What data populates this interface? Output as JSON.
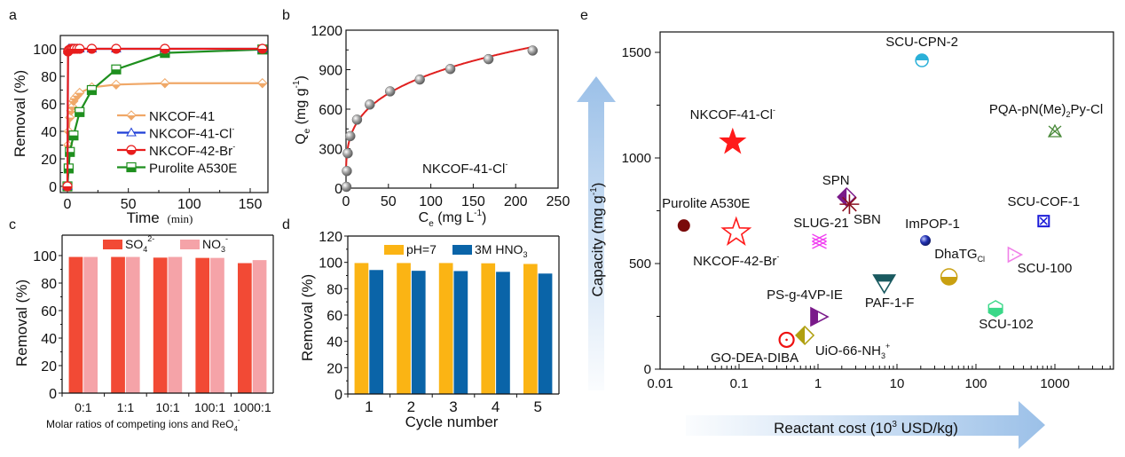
{
  "chart_data": [
    {
      "panel": "a",
      "type": "line",
      "title": "",
      "xlabel": "Time (min)",
      "ylabel": "Removal (%)",
      "xlim": [
        -5,
        165
      ],
      "ylim": [
        -3,
        108
      ],
      "xticks": [
        0,
        50,
        100,
        150
      ],
      "yticks": [
        0,
        20,
        40,
        60,
        80,
        100
      ],
      "legend_position": "bottom-right",
      "series": [
        {
          "name": "NKCOF-41",
          "color": "#f0a868",
          "marker": "diamond",
          "x": [
            0,
            0.5,
            1,
            2,
            3,
            4,
            5,
            6,
            8,
            10,
            20,
            40,
            80,
            160
          ],
          "y": [
            0,
            30,
            40,
            50,
            55,
            58,
            62,
            64,
            66,
            68,
            72,
            74,
            75,
            75
          ]
        },
        {
          "name": "NKCOF-41-Cl⁻",
          "color": "#1f3fd6",
          "marker": "triangle",
          "x": [
            0,
            0.5,
            1,
            2,
            3,
            4,
            5,
            6,
            8,
            10,
            20,
            40,
            80,
            160
          ],
          "y": [
            0,
            99,
            100,
            100,
            100,
            100,
            100,
            100,
            100,
            100,
            100,
            100,
            100,
            100
          ]
        },
        {
          "name": "NKCOF-42-Br⁻",
          "color": "#e81d1d",
          "marker": "circle",
          "x": [
            0,
            0.5,
            1,
            2,
            3,
            4,
            5,
            6,
            8,
            10,
            20,
            40,
            80,
            160
          ],
          "y": [
            0,
            98,
            99,
            99.5,
            100,
            100,
            100,
            100,
            100,
            100,
            100,
            100,
            100,
            100
          ]
        },
        {
          "name": "Purolite A530E",
          "color": "#1e8f1e",
          "marker": "square",
          "x": [
            0,
            1,
            2,
            5,
            10,
            20,
            40,
            80,
            160
          ],
          "y": [
            0,
            13,
            25,
            37,
            54,
            70,
            85,
            97,
            99.5
          ]
        }
      ]
    },
    {
      "panel": "b",
      "type": "scatter",
      "title": "",
      "annotation": "NKCOF-41-Cl⁻",
      "xlabel": "Ce (mg L⁻¹)",
      "ylabel": "Qe (mg g⁻¹)",
      "xlim": [
        0,
        250
      ],
      "ylim": [
        0,
        1200
      ],
      "xticks": [
        0,
        50,
        100,
        150,
        200,
        250
      ],
      "yticks": [
        0,
        300,
        600,
        900,
        1200
      ],
      "points": {
        "x": [
          0.5,
          1,
          2,
          5,
          13,
          28,
          52,
          87,
          123,
          168,
          220
        ],
        "y": [
          10,
          130,
          265,
          395,
          520,
          635,
          735,
          825,
          905,
          980,
          1045
        ]
      },
      "fit": {
        "type": "freundlich",
        "K": 250,
        "n_inv": 0.27,
        "color": "#e0201f"
      }
    },
    {
      "panel": "c",
      "type": "bar",
      "title": "",
      "xlabel": "Molar ratios of competing ions and ReO₄⁻",
      "ylabel": "Removal (%)",
      "ylim": [
        0,
        112
      ],
      "yticks": [
        0,
        20,
        40,
        60,
        80,
        100
      ],
      "categories": [
        "0:1",
        "1:1",
        "10:1",
        "100:1",
        "1000:1"
      ],
      "legend_position": "top",
      "series": [
        {
          "name": "SO₄²⁻",
          "color": "#f24a35",
          "values": [
            99,
            99,
            98.5,
            98.3,
            94.5
          ]
        },
        {
          "name": "NO₃⁻",
          "color": "#f5a3a8",
          "values": [
            99,
            99,
            99,
            98.3,
            96.7
          ]
        }
      ]
    },
    {
      "panel": "d",
      "type": "bar",
      "title": "",
      "xlabel": "Cycle number",
      "ylabel": "Removal (%)",
      "ylim": [
        0,
        120
      ],
      "yticks": [
        0,
        20,
        40,
        60,
        80,
        100,
        120
      ],
      "categories": [
        "1",
        "2",
        "3",
        "4",
        "5"
      ],
      "legend_position": "top",
      "series": [
        {
          "name": "pH=7",
          "color": "#fbb414",
          "values": [
            99.5,
            99.5,
            99.5,
            99.3,
            98.8
          ]
        },
        {
          "name": "3M HNO₃",
          "color": "#0a64a8",
          "values": [
            94.2,
            93.6,
            93.4,
            92.8,
            91.5
          ]
        }
      ]
    },
    {
      "panel": "e",
      "type": "scatter",
      "title": "",
      "xlabel": "Reactant cost (10³ USD/kg)",
      "ylabel": "Capacity (mg g⁻¹)",
      "xscale": "log",
      "xlim": [
        0.01,
        5000
      ],
      "ylim": [
        0,
        1600
      ],
      "xticks": [
        "0.01",
        "0.1",
        "1",
        "10",
        "100",
        "1000"
      ],
      "yticks": [
        0,
        500,
        1000,
        1500
      ],
      "points": [
        {
          "label": "NKCOF-41-Cl⁻",
          "x": 0.083,
          "y": 1075,
          "marker": "star-filled",
          "color": "#ff1a1a"
        },
        {
          "label": "NKCOF-42-Br⁻",
          "x": 0.092,
          "y": 647,
          "marker": "star-open",
          "color": "#ff1a1a"
        },
        {
          "label": "Purolite A530E",
          "x": 0.02,
          "y": 680,
          "marker": "circle-filled",
          "color": "#7a0a0a"
        },
        {
          "label": "SCU-CPN-2",
          "x": 20.7,
          "y": 1462,
          "marker": "circle-half",
          "color": "#2ab0d8"
        },
        {
          "label": "PQA-pN(Me)₂Py-Cl",
          "x": 1000,
          "y": 1126,
          "marker": "triangle-cross",
          "color": "#4a8a3a"
        },
        {
          "label": "SPN",
          "x": 2.3,
          "y": 815,
          "marker": "diamond-half",
          "color": "#7a1a8a"
        },
        {
          "label": "SBN",
          "x": 2.5,
          "y": 781,
          "marker": "asterisk",
          "color": "#8a1020"
        },
        {
          "label": "SLUG-21",
          "x": 1.04,
          "y": 605,
          "marker": "hash",
          "color": "#f040f0"
        },
        {
          "label": "SCU-COF-1",
          "x": 720,
          "y": 701,
          "marker": "square-x",
          "color": "#1a1ad8"
        },
        {
          "label": "ImPOP-1",
          "x": 22.9,
          "y": 609,
          "marker": "sphere",
          "color": "#1a2aa0"
        },
        {
          "label": "SCU-100",
          "x": 300,
          "y": 542,
          "marker": "triangle-right-open",
          "color": "#f080e8"
        },
        {
          "label": "DhaTGCl",
          "x": 45.6,
          "y": 437,
          "marker": "circle-half-bottom",
          "color": "#c9a010"
        },
        {
          "label": "PAF-1-F",
          "x": 6.9,
          "y": 408,
          "marker": "triangle-down-half",
          "color": "#1a5a60"
        },
        {
          "label": "SCU-102",
          "x": 177,
          "y": 286,
          "marker": "hexagon-half",
          "color": "#3ad888"
        },
        {
          "label": "PS-g-4VP-IE",
          "x": 1.0,
          "y": 248,
          "marker": "triangle-right-half",
          "color": "#7a1a8a"
        },
        {
          "label": "UiO-66-NH₃⁺",
          "x": 0.68,
          "y": 160,
          "marker": "diamond-half",
          "color": "#b0a010"
        },
        {
          "label": "GO-DEA-DIBA",
          "x": 0.4,
          "y": 139,
          "marker": "circle-dot",
          "color": "#ee1010"
        }
      ]
    }
  ],
  "panel_labels": [
    "a",
    "b",
    "c",
    "d",
    "e"
  ],
  "text": {
    "a_xlabel": "Time",
    "a_xunit": "(min)",
    "a_ylabel": "Removal (%)",
    "b_annot_main": "NKCOF-41-Cl",
    "b_annot_sup": "-",
    "b_xlabel_parts": [
      "C",
      "e",
      " (mg L",
      "-1",
      ")"
    ],
    "b_ylabel_parts": [
      "Q",
      "e",
      " (mg g",
      "-1",
      ")"
    ],
    "c_ylabel": "Removal (%)",
    "c_xlabel": "Molar ratios of competing ions and ReO",
    "c_xlabel_sub": "4",
    "c_xlabel_sup": "-",
    "c_legend": [
      {
        "main": "SO",
        "sub": "4",
        "sup": "2-"
      },
      {
        "main": "NO",
        "sub": "3",
        "sup": "-"
      }
    ],
    "d_ylabel": "Removal (%)",
    "d_xlabel": "Cycle number",
    "d_legend": [
      {
        "main": "pH=7",
        "sub": "",
        "sup": ""
      },
      {
        "main": "3M HNO",
        "sub": "3",
        "sup": ""
      }
    ],
    "e_ylabel": "Capacity (mg g",
    "e_ylabel_sup": "-1",
    "e_xlabel": "Reactant cost (10",
    "e_xlabel_sup": "3",
    "e_xlabel_end": " USD/kg)"
  }
}
